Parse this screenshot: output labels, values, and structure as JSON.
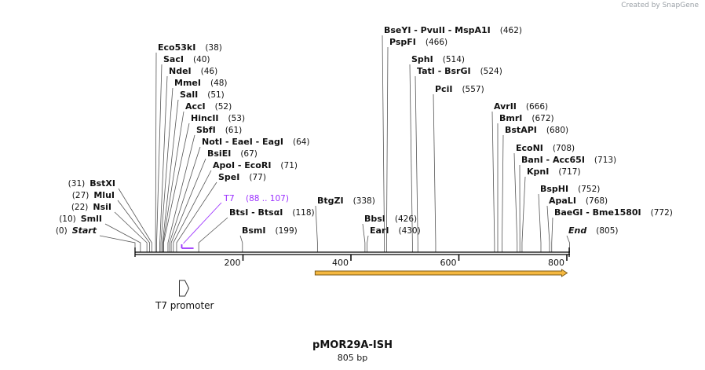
{
  "credit": "Created by SnapGene",
  "plasmid": {
    "name": "pMOR29A-ISH",
    "length_label": "805 bp",
    "length": 805
  },
  "axis": {
    "ticks": [
      200,
      400,
      600,
      800
    ]
  },
  "colors": {
    "primer": "#9b30ff",
    "orf_fill": "#f5b840",
    "orf_stroke": "#7a5a18",
    "line": "#555555"
  },
  "features": [
    {
      "name": "T7",
      "range_label": "(88 .. 107)",
      "start": 88,
      "end": 107,
      "type": "primer"
    },
    {
      "name": "T7 promoter",
      "type": "promoter",
      "position": 88
    },
    {
      "name": "",
      "type": "orf",
      "start": 338,
      "end": 805
    }
  ],
  "sites": [
    {
      "label": "Start",
      "pos": "(0)",
      "loc": 0,
      "style": "italic"
    },
    {
      "label": "SmlI",
      "pos": "(10)",
      "loc": 10
    },
    {
      "label": "NsiI",
      "pos": "(22)",
      "loc": 22
    },
    {
      "label": "MluI",
      "pos": "(27)",
      "loc": 27
    },
    {
      "label": "BstXI",
      "pos": "(31)",
      "loc": 31
    },
    {
      "label": "Eco53kI",
      "pos": "(38)",
      "loc": 38
    },
    {
      "label": "SacI",
      "pos": "(40)",
      "loc": 40
    },
    {
      "label": "NdeI",
      "pos": "(46)",
      "loc": 46
    },
    {
      "label": "MmeI",
      "pos": "(48)",
      "loc": 48
    },
    {
      "label": "SalI",
      "pos": "(51)",
      "loc": 51
    },
    {
      "label": "AccI",
      "pos": "(52)",
      "loc": 52
    },
    {
      "label": "HincII",
      "pos": "(53)",
      "loc": 53
    },
    {
      "label": "SbfI",
      "pos": "(61)",
      "loc": 61
    },
    {
      "label": "NotI  -  EaeI  -  EagI",
      "pos": "(64)",
      "loc": 64
    },
    {
      "label": "BsiEI",
      "pos": "(67)",
      "loc": 67
    },
    {
      "label": "ApoI  -  EcoRI",
      "pos": "(71)",
      "loc": 71
    },
    {
      "label": "SpeI",
      "pos": "(77)",
      "loc": 77
    },
    {
      "label": "BtsI  -  BtsαI",
      "pos": "(118)",
      "loc": 118
    },
    {
      "label": "BsmI",
      "pos": "(199)",
      "loc": 199
    },
    {
      "label": "BtgZI",
      "pos": "(338)",
      "loc": 338
    },
    {
      "label": "BbsI",
      "pos": "(426)",
      "loc": 426
    },
    {
      "label": "EarI",
      "pos": "(430)",
      "loc": 430
    },
    {
      "label": "BseYI  -  PvuII  -  MspA1I",
      "pos": "(462)",
      "loc": 462
    },
    {
      "label": "PspFI",
      "pos": "(466)",
      "loc": 466
    },
    {
      "label": "SphI",
      "pos": "(514)",
      "loc": 514
    },
    {
      "label": "TatI  -  BsrGI",
      "pos": "(524)",
      "loc": 524
    },
    {
      "label": "PciI",
      "pos": "(557)",
      "loc": 557
    },
    {
      "label": "AvrII",
      "pos": "(666)",
      "loc": 666
    },
    {
      "label": "BmrI",
      "pos": "(672)",
      "loc": 672
    },
    {
      "label": "BstAPI",
      "pos": "(680)",
      "loc": 680
    },
    {
      "label": "EcoNI",
      "pos": "(708)",
      "loc": 708
    },
    {
      "label": "BanI  -  Acc65I",
      "pos": "(713)",
      "loc": 713
    },
    {
      "label": "KpnI",
      "pos": "(717)",
      "loc": 717
    },
    {
      "label": "BspHI",
      "pos": "(752)",
      "loc": 752
    },
    {
      "label": "ApaLI",
      "pos": "(768)",
      "loc": 768
    },
    {
      "label": "BaeGI  -  Bme1580I",
      "pos": "(772)",
      "loc": 772
    },
    {
      "label": "End",
      "pos": "(805)",
      "loc": 805,
      "style": "italic"
    }
  ]
}
